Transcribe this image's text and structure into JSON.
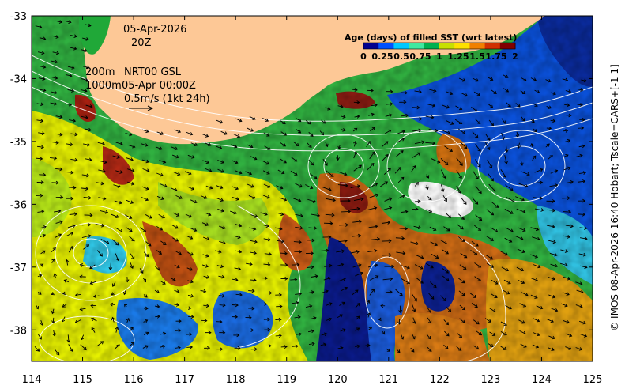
{
  "map": {
    "date_label": "05-Apr-2026",
    "time_label": "20Z",
    "contour_depth_1": "200m",
    "contour_depth_2": "1000m",
    "model_label": "NRT00 GSL",
    "model_time": "05-Apr 00:00Z",
    "vector_scale_label": "0.5m/s (1kt 24h)",
    "credit": "© IMOS 08-Apr-2026 16:40 Hobart; Tscale=CARS+[-1 1]"
  },
  "colorbar": {
    "title": "Age (days) of filled SST (wrt latest)",
    "tick_labels": [
      "0",
      "0.25",
      "0.5",
      "0.75",
      "1",
      "1.25",
      "1.5",
      "1.75",
      "2"
    ],
    "colors": [
      "#00008f",
      "#0050ff",
      "#00c8ff",
      "#40e8a0",
      "#00b050",
      "#c8e000",
      "#ffe000",
      "#f08000",
      "#d03000",
      "#800000"
    ]
  },
  "axes": {
    "lon_ticks": [
      "114",
      "115",
      "116",
      "117",
      "118",
      "119",
      "120",
      "121",
      "122",
      "123",
      "124",
      "125"
    ],
    "lat_ticks": [
      "-33",
      "-34",
      "-35",
      "-36",
      "-37",
      "-38"
    ],
    "lon_range": [
      114,
      125
    ],
    "lat_range": [
      -38.5,
      -33
    ]
  },
  "colors": {
    "land": "#fdc896",
    "age_blue": "#0050e0",
    "age_green": "#20b040",
    "age_yellow": "#e8f000",
    "age_orange": "#d06010",
    "age_darkred": "#901010"
  }
}
